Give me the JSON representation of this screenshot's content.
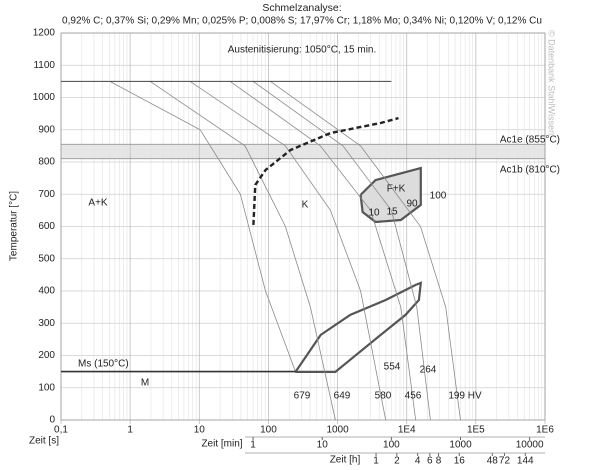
{
  "chart_data": {
    "type": "line",
    "title": "Schmelzanalyse:",
    "subtitle": "0,92% C; 0,37% Si; 0,29% Mn; 0,025% P; 0,008% S; 17,97% Cr; 1,18% Mo; 0,34% Ni; 0,120% V; 0,12% Cu",
    "watermark": "© Datenbank StahlWissen",
    "xlabel": "Zeit [s]",
    "ylabel": "Temperatur [°C]",
    "xscale": "log",
    "xlim": [
      0.1,
      1000000
    ],
    "ylim": [
      0,
      1200
    ],
    "xticks": [
      {
        "value": 0.1,
        "label": "0,1"
      },
      1,
      10,
      100,
      1000,
      {
        "value": 10000,
        "label": "1E4"
      },
      {
        "value": 100000,
        "label": "1E5"
      },
      {
        "value": 1000000,
        "label": "1E6"
      }
    ],
    "yticks": [
      0,
      100,
      200,
      300,
      400,
      500,
      600,
      700,
      800,
      900,
      1000,
      1100,
      1200
    ],
    "grid": true,
    "min_axis": {
      "label": "Zeit [min]",
      "ticks": [
        1,
        10,
        100,
        1000,
        10000
      ]
    },
    "h_axis": {
      "label": "Zeit [h]",
      "ticks": [
        1,
        2,
        4,
        6,
        8,
        16,
        48,
        72,
        144
      ]
    },
    "ac_lines": [
      {
        "label": "Ac1e (855°C)",
        "y": 855
      },
      {
        "label": "Ac1b (810°C)",
        "y": 810
      }
    ],
    "austenitizing_line": {
      "x": [
        0.1,
        6000
      ],
      "y": [
        1050,
        1050
      ]
    },
    "ms_line": {
      "label": "Ms (150°C)",
      "x": [
        0.1,
        250
      ],
      "y": [
        150,
        150
      ]
    },
    "cooling_curves": [
      {
        "x": [
          0.51,
          10.3,
          39.2,
          90.7,
          246
        ],
        "y": [
          1050,
          900,
          700,
          400,
          150
        ]
      },
      {
        "x": [
          1.95,
          46,
          176,
          405,
          930
        ],
        "y": [
          1050,
          850,
          600,
          350,
          0
        ]
      },
      {
        "x": [
          7.4,
          176,
          790,
          2150,
          4970
        ],
        "y": [
          1050,
          850,
          650,
          400,
          0
        ]
      },
      {
        "x": [
          28,
          565,
          3000,
          8200,
          13500
        ],
        "y": [
          1050,
          850,
          650,
          350,
          0
        ]
      },
      {
        "x": [
          60,
          1200,
          6000,
          14000,
          22000
        ],
        "y": [
          1050,
          850,
          650,
          350,
          0
        ]
      },
      {
        "x": [
          107,
          2150,
          15800,
          36600,
          60000
        ],
        "y": [
          1050,
          850,
          600,
          350,
          0
        ]
      }
    ],
    "boundaries": [
      {
        "style": "dashed",
        "x": [
          60.6,
          64.6,
          90.7,
          208,
          793,
          4200,
          7600
        ],
        "y": [
          605,
          729,
          775,
          837,
          890,
          921,
          936
        ]
      }
    ],
    "regions": [
      {
        "fill": "#dcdcdc",
        "x": [
          2150,
          3540,
          16000,
          16000,
          8200,
          3540,
          2300,
          2150
        ],
        "y": [
          698,
          744,
          781,
          667,
          620,
          614,
          645,
          698
        ]
      },
      {
        "fill": "none",
        "x": [
          246,
          570,
          1530,
          4970,
          13500,
          16000,
          15000,
          9600,
          4200,
          1530,
          930,
          246
        ],
        "y": [
          149,
          264,
          326,
          372,
          419,
          425,
          372,
          326,
          264,
          187,
          149,
          149
        ]
      }
    ],
    "annotations": [
      "Austenitisierung: 1050°C, 15 min.",
      "A+K",
      "K",
      "F+K",
      "10",
      "15",
      "90",
      "100",
      "M",
      "679",
      "649",
      "580",
      "456",
      "199 HV",
      "554",
      "264"
    ]
  }
}
